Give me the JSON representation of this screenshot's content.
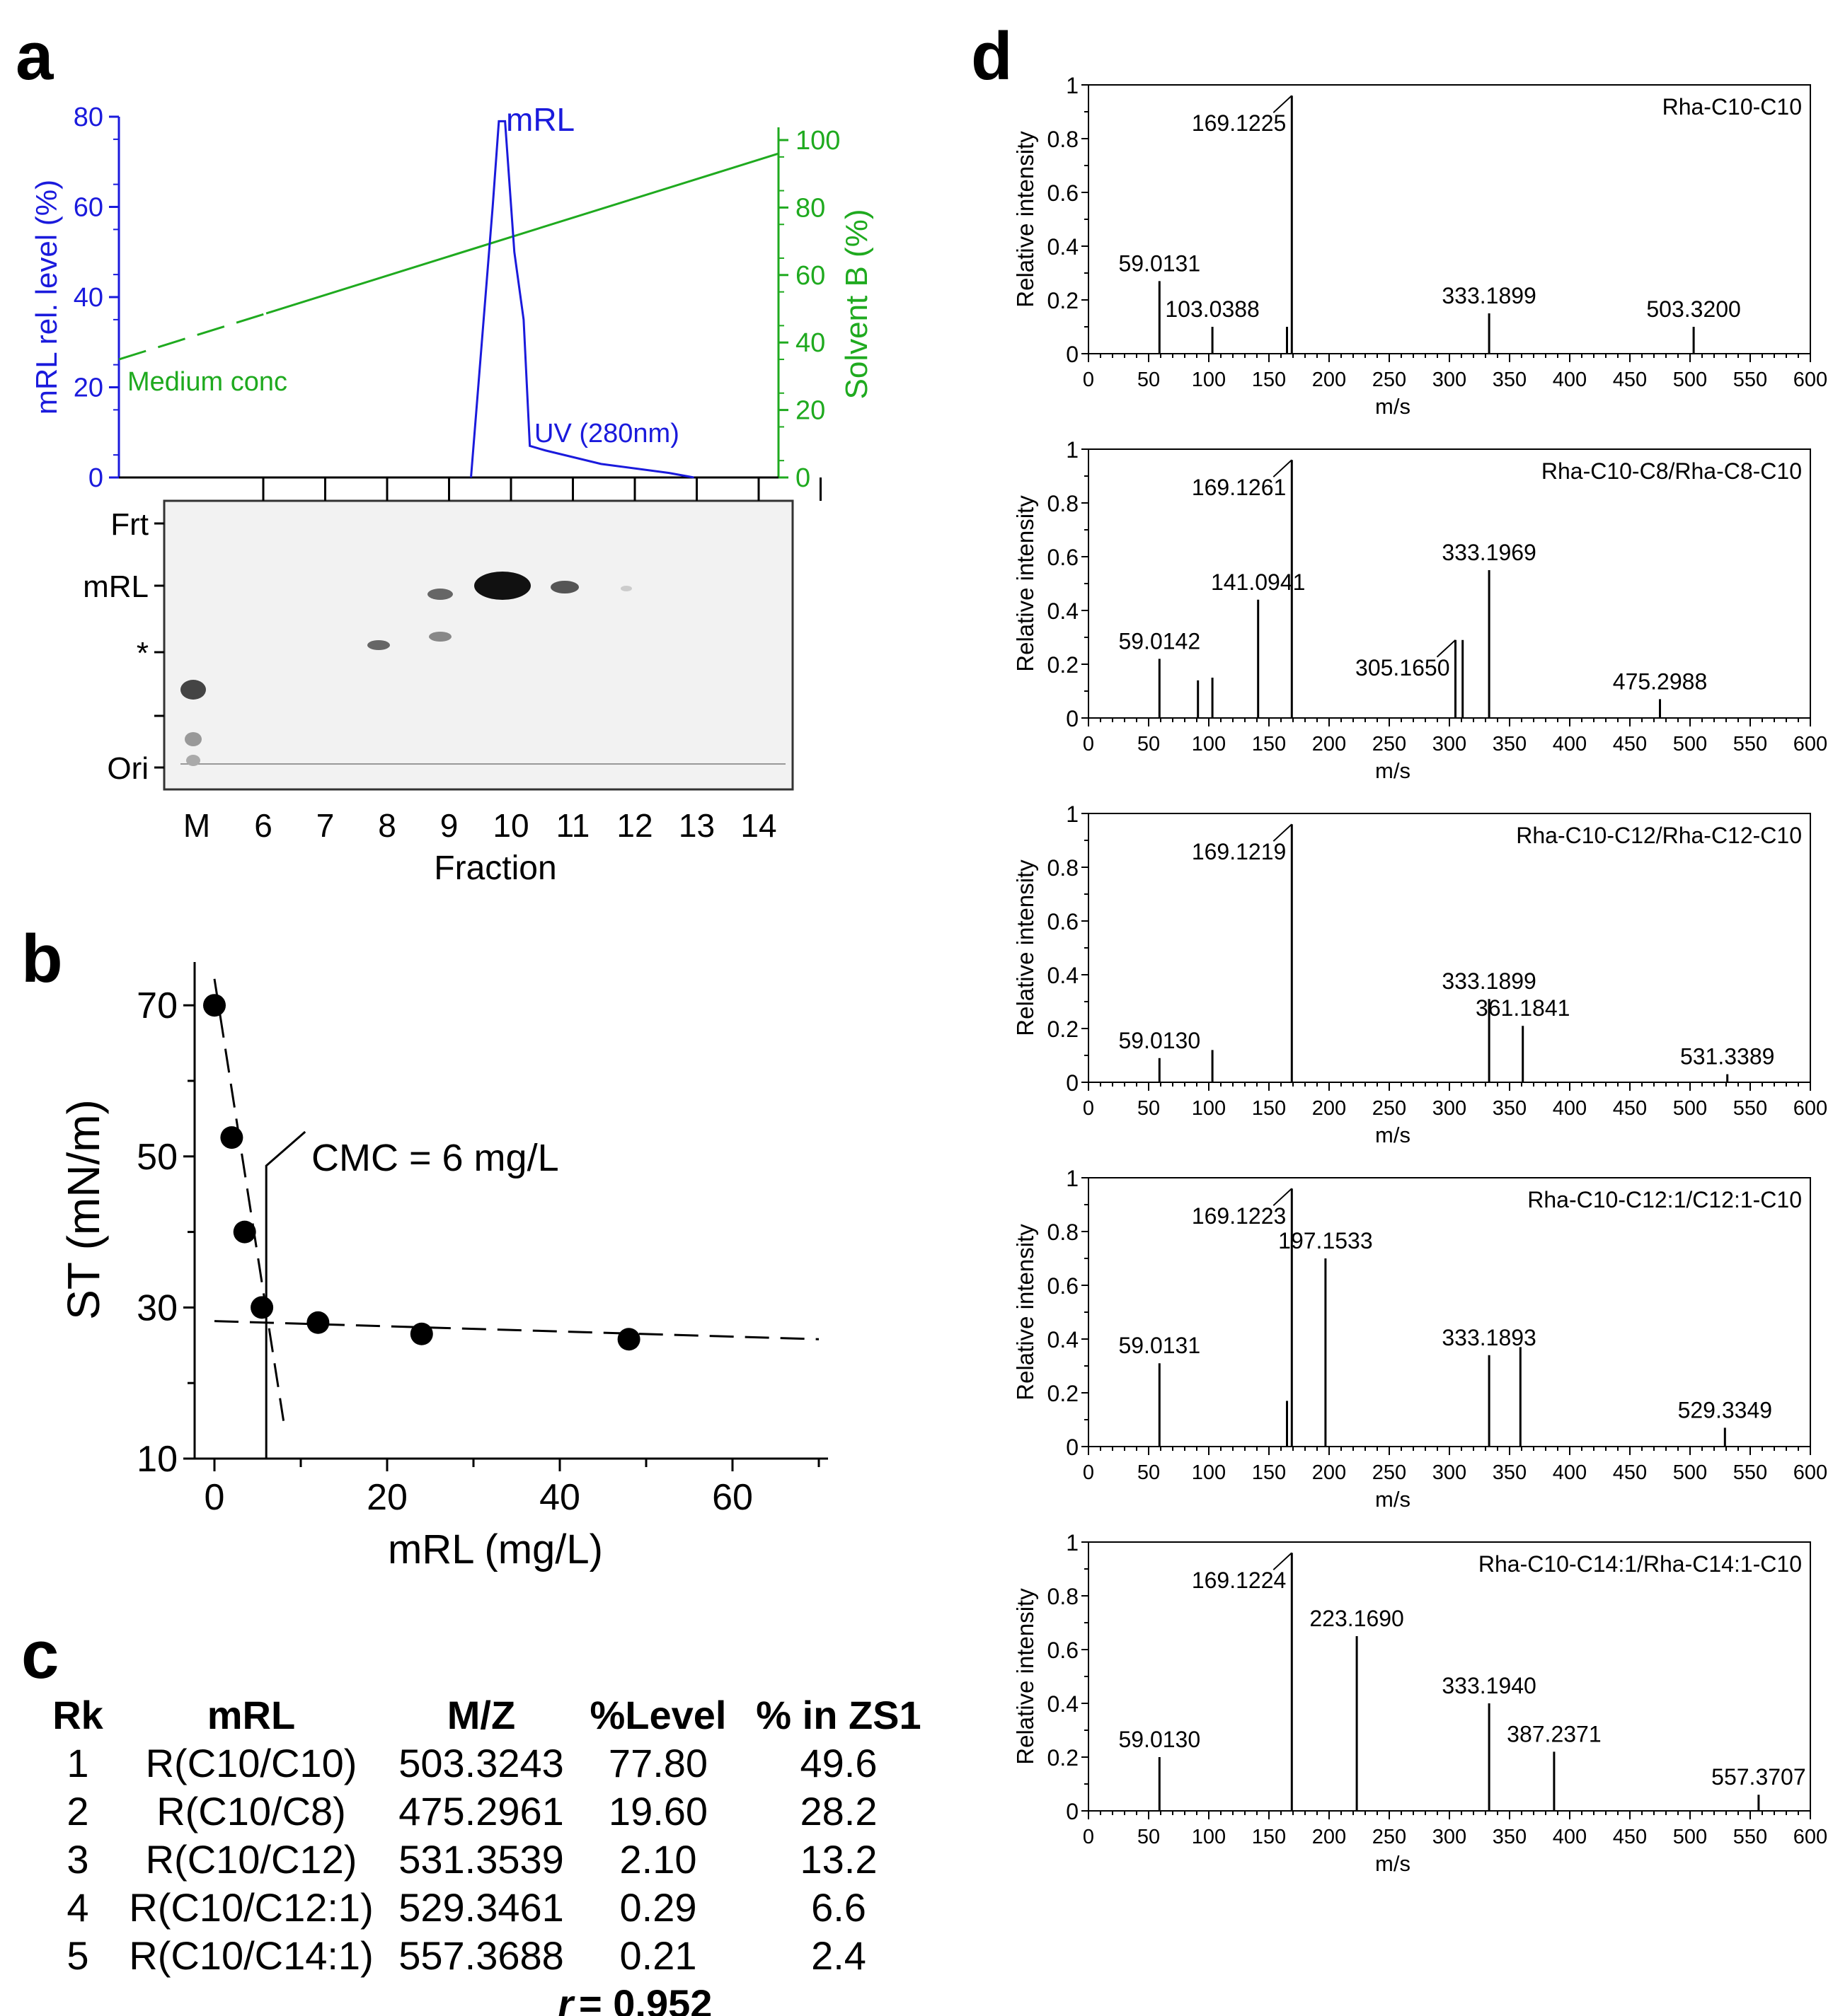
{
  "panel_labels": {
    "a": "a",
    "b": "b",
    "c": "c",
    "d": "d"
  },
  "colors": {
    "blue": "#1a1adc",
    "green": "#1faa1f",
    "black": "#000000"
  },
  "chart_data": [
    {
      "id": "a",
      "type": "line",
      "left_axis": {
        "label": "mRL rel. level (%)",
        "ylim": [
          0,
          80
        ],
        "ticks": [
          0,
          20,
          40,
          60,
          80
        ]
      },
      "right_axis": {
        "label": "Solvent B (%)",
        "ylim": [
          0,
          100
        ],
        "ticks": [
          0,
          20,
          40,
          60,
          80,
          100
        ]
      },
      "series": [
        {
          "name": "mRL",
          "axis": "left",
          "x": [
            9.4,
            9.75,
            9.85,
            9.95,
            10.1,
            10.25,
            10.35,
            10.6,
            11.5,
            12.6,
            13.0
          ],
          "y": [
            0,
            60,
            79,
            79,
            50,
            35,
            7,
            6,
            3,
            1,
            0
          ]
        },
        {
          "name": "Solvent B",
          "axis": "right",
          "x": [
            4.2,
            14.5
          ],
          "y": [
            35,
            96
          ],
          "dashed_until": 6.5
        }
      ],
      "annotations": {
        "peak": "mRL",
        "uv": "UV (280nm)",
        "medium": "Medium conc"
      },
      "tlc": {
        "row_labels": [
          "Frt",
          "mRL",
          "*",
          "Ori"
        ],
        "lanes": [
          "M",
          "6",
          "7",
          "8",
          "9",
          "10",
          "11",
          "12",
          "13",
          "14"
        ],
        "xlabel": "Fraction"
      }
    },
    {
      "id": "b",
      "type": "scatter",
      "x": [
        0,
        2,
        3.5,
        5.5,
        12,
        24,
        48
      ],
      "y": [
        70,
        52.5,
        40,
        30,
        28,
        26.5,
        25.8
      ],
      "xlabel": "mRL (mg/L)",
      "ylabel": "ST (mN/m)",
      "xlim": [
        -2,
        72
      ],
      "ylim": [
        10,
        76
      ],
      "xticks": [
        0,
        20,
        40,
        60
      ],
      "yticks": [
        10,
        30,
        50,
        70
      ],
      "fit_lines": [
        {
          "x1": 0,
          "y1": 73.5,
          "x2": 8,
          "y2": 15
        },
        {
          "x1": 0,
          "y1": 28.2,
          "x2": 70,
          "y2": 25.8
        }
      ],
      "cmc_x": 6,
      "annotation": "CMC = 6 mg/L"
    },
    {
      "id": "c",
      "type": "table",
      "columns": [
        "Rk",
        "mRL",
        "M/Z",
        "%Level",
        "% in ZS1"
      ],
      "rows": [
        [
          "1",
          "R(C10/C10)",
          "503.3243",
          "77.80",
          "49.6"
        ],
        [
          "2",
          "R(C10/C8)",
          "475.2961",
          "19.60",
          "28.2"
        ],
        [
          "3",
          "R(C10/C12)",
          "531.3539",
          "2.10",
          "13.2"
        ],
        [
          "4",
          "R(C10/C12:1)",
          "529.3461",
          "0.29",
          "6.6"
        ],
        [
          "5",
          "R(C10/C14:1)",
          "557.3688",
          "0.21",
          "2.4"
        ]
      ],
      "r_label": "r",
      "r_value": "= 0.952"
    },
    {
      "id": "d",
      "type": "bar",
      "xlabel": "m/s",
      "ylabel": "Relative intensity",
      "xlim": [
        0,
        600
      ],
      "ylim": [
        0,
        1
      ],
      "xticks": [
        0,
        50,
        100,
        150,
        200,
        250,
        300,
        350,
        400,
        450,
        500,
        550,
        600
      ],
      "yticks": [
        0,
        0.2,
        0.4,
        0.6,
        0.8,
        1
      ],
      "spectra": [
        {
          "title": "Rha-C10-C10",
          "peaks": [
            [
              59,
              0.27
            ],
            [
              103,
              0.1
            ],
            [
              165,
              0.1
            ],
            [
              169,
              0.96
            ],
            [
              333,
              0.15
            ],
            [
              503,
              0.1
            ]
          ],
          "labels": [
            {
              "text": "59.0131",
              "x": 59,
              "y": 0.27
            },
            {
              "text": "103.0388",
              "x": 103,
              "y": 0.1
            },
            {
              "text": "169.1225",
              "x": 169,
              "y": 0.96,
              "leader": true
            },
            {
              "text": "333.1899",
              "x": 333,
              "y": 0.15
            },
            {
              "text": "503.3200",
              "x": 503,
              "y": 0.1
            }
          ]
        },
        {
          "title": "Rha-C10-C8/Rha-C8-C10",
          "peaks": [
            [
              59,
              0.22
            ],
            [
              91,
              0.14
            ],
            [
              103,
              0.15
            ],
            [
              141,
              0.44
            ],
            [
              169,
              0.96
            ],
            [
              305,
              0.29
            ],
            [
              311,
              0.29
            ],
            [
              333,
              0.55
            ],
            [
              475,
              0.07
            ]
          ],
          "labels": [
            {
              "text": "59.0142",
              "x": 59,
              "y": 0.22
            },
            {
              "text": "141.0941",
              "x": 141,
              "y": 0.44
            },
            {
              "text": "169.1261",
              "x": 169,
              "y": 0.96,
              "leader": true
            },
            {
              "text": "305.1650",
              "x": 305,
              "y": 0.29,
              "leader": true
            },
            {
              "text": "333.1969",
              "x": 333,
              "y": 0.55
            },
            {
              "text": "475.2988",
              "x": 475,
              "y": 0.07
            }
          ]
        },
        {
          "title": "Rha-C10-C12/Rha-C12-C10",
          "peaks": [
            [
              59,
              0.09
            ],
            [
              103,
              0.12
            ],
            [
              169,
              0.96
            ],
            [
              333,
              0.31
            ],
            [
              361,
              0.21
            ],
            [
              531,
              0.03
            ]
          ],
          "labels": [
            {
              "text": "59.0130",
              "x": 59,
              "y": 0.09
            },
            {
              "text": "169.1219",
              "x": 169,
              "y": 0.96,
              "leader": true
            },
            {
              "text": "333.1899",
              "x": 333,
              "y": 0.31
            },
            {
              "text": "361.1841",
              "x": 361,
              "y": 0.21
            },
            {
              "text": "531.3389",
              "x": 531,
              "y": 0.03
            }
          ]
        },
        {
          "title": "Rha-C10-C12:1/C12:1-C10",
          "peaks": [
            [
              59,
              0.31
            ],
            [
              165,
              0.17
            ],
            [
              169,
              0.96
            ],
            [
              197,
              0.7
            ],
            [
              333,
              0.34
            ],
            [
              359,
              0.37
            ],
            [
              529,
              0.07
            ]
          ],
          "labels": [
            {
              "text": "59.0131",
              "x": 59,
              "y": 0.31
            },
            {
              "text": "169.1223",
              "x": 169,
              "y": 0.96,
              "leader": true
            },
            {
              "text": "197.1533",
              "x": 197,
              "y": 0.7
            },
            {
              "text": "333.1893",
              "x": 333,
              "y": 0.34
            },
            {
              "text": "529.3349",
              "x": 529,
              "y": 0.07
            }
          ]
        },
        {
          "title": "Rha-C10-C14:1/Rha-C14:1-C10",
          "peaks": [
            [
              59,
              0.2
            ],
            [
              169,
              0.96
            ],
            [
              223,
              0.65
            ],
            [
              333,
              0.4
            ],
            [
              387,
              0.22
            ],
            [
              557,
              0.06
            ]
          ],
          "labels": [
            {
              "text": "59.0130",
              "x": 59,
              "y": 0.2
            },
            {
              "text": "169.1224",
              "x": 169,
              "y": 0.96,
              "leader": true
            },
            {
              "text": "223.1690",
              "x": 223,
              "y": 0.65
            },
            {
              "text": "333.1940",
              "x": 333,
              "y": 0.4
            },
            {
              "text": "387.2371",
              "x": 387,
              "y": 0.22
            },
            {
              "text": "557.3707",
              "x": 557,
              "y": 0.06
            }
          ]
        }
      ]
    }
  ]
}
